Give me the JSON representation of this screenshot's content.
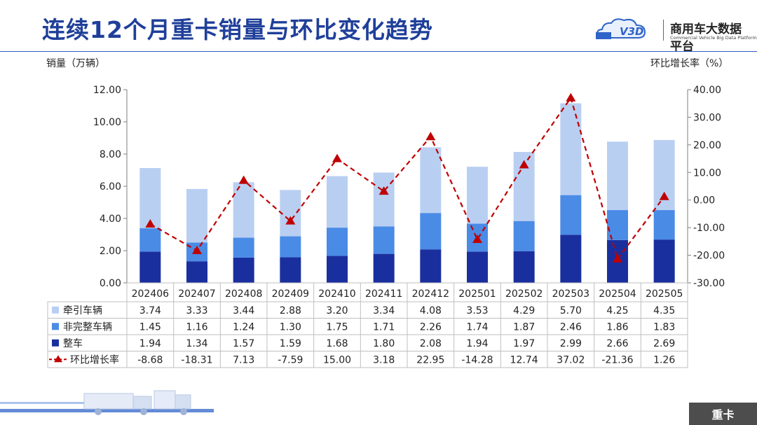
{
  "header": {
    "title": "连续12个月重卡销量与环比变化趋势",
    "logo_mark": "V3D",
    "logo_name": "商用车大数据平台",
    "logo_subtitle": "Commercial Vehicle Big Data Platform"
  },
  "footer": {
    "tab_label": "重卡"
  },
  "chart_data": {
    "type": "bar",
    "stacked": true,
    "ylabel": "销量（万辆）",
    "y2label": "环比增长率（%）",
    "ylim": [
      0,
      12
    ],
    "y2lim": [
      -30,
      40
    ],
    "categories": [
      "202406",
      "202407",
      "202408",
      "202409",
      "202410",
      "202411",
      "202412",
      "202501",
      "202502",
      "202503",
      "202504",
      "202505"
    ],
    "bar_series": [
      {
        "name": "整车",
        "color": "#1a2f9e",
        "values": [
          1.94,
          1.34,
          1.57,
          1.59,
          1.68,
          1.8,
          2.08,
          1.94,
          1.97,
          2.99,
          2.66,
          2.69
        ],
        "labels": [
          "1.94",
          "1.34",
          "1.57",
          "1.59",
          "1.68",
          "1.80",
          "2.08",
          "1.94",
          "1.97",
          "2.99",
          "2.66",
          "2.69"
        ]
      },
      {
        "name": "非完整车辆",
        "color": "#4a8be6",
        "values": [
          1.45,
          1.16,
          1.24,
          1.3,
          1.75,
          1.71,
          2.26,
          1.74,
          1.87,
          2.46,
          1.86,
          1.83
        ],
        "labels": [
          "1.45",
          "1.16",
          "1.24",
          "1.30",
          "1.75",
          "1.71",
          "2.26",
          "1.74",
          "1.87",
          "2.46",
          "1.86",
          "1.83"
        ]
      },
      {
        "name": "牵引车辆",
        "color": "#b9cff2",
        "values": [
          3.74,
          3.33,
          3.44,
          2.88,
          3.2,
          3.34,
          4.08,
          3.53,
          4.29,
          5.7,
          4.25,
          4.35
        ],
        "labels": [
          "3.74",
          "3.33",
          "3.44",
          "2.88",
          "3.20",
          "3.34",
          "4.08",
          "3.53",
          "4.29",
          "5.70",
          "4.25",
          "4.35"
        ]
      }
    ],
    "line_series": {
      "name": "环比增长率",
      "color": "#c00000",
      "values": [
        -8.68,
        -18.31,
        7.13,
        -7.59,
        15.0,
        3.18,
        22.95,
        -14.28,
        12.74,
        37.02,
        -21.36,
        1.26
      ],
      "labels": [
        "-8.68",
        "-18.31",
        "7.13",
        "-7.59",
        "15.00",
        "3.18",
        "22.95",
        "-14.28",
        "12.74",
        "37.02",
        "-21.36",
        "1.26"
      ]
    },
    "yticks": [
      "0.00",
      "2.00",
      "4.00",
      "6.00",
      "8.00",
      "10.00",
      "12.00"
    ],
    "y2ticks": [
      "-30.00",
      "-20.00",
      "-10.00",
      "0.00",
      "10.00",
      "20.00",
      "30.00",
      "40.00"
    ],
    "table_row_order": [
      "牵引车辆",
      "非完整车辆",
      "整车",
      "环比增长率"
    ],
    "grid": false
  }
}
